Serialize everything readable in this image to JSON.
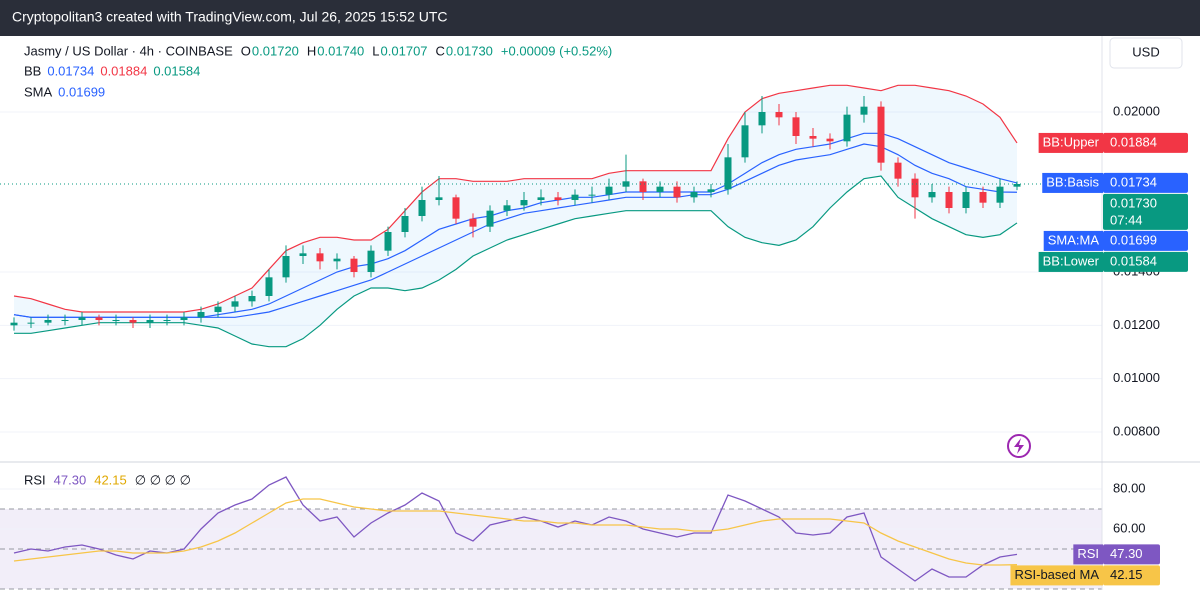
{
  "header": {
    "title": "Cryptopolitan3 created with TradingView.com, Jul 26, 2025 15:52 UTC",
    "currency": "USD"
  },
  "chart_data": [
    {
      "type": "candlestick",
      "legend": {
        "symbol": "Jasmy / US Dollar · 4h · COINBASE",
        "fields": [
          {
            "key": "O",
            "text": "0.01720"
          },
          {
            "key": "H",
            "text": "0.01740"
          },
          {
            "key": "L",
            "text": "0.01707"
          },
          {
            "key": "C",
            "text": "0.01730"
          }
        ],
        "change": "+0.00009 (+0.52%)",
        "bb": "BB",
        "sma": "SMA"
      },
      "open": [
        0.012,
        0.0121,
        0.0121,
        0.0122,
        0.0122,
        0.0123,
        0.0122,
        0.0122,
        0.0121,
        0.0122,
        0.0122,
        0.0123,
        0.0125,
        0.0127,
        0.0129,
        0.0131,
        0.0138,
        0.0146,
        0.0147,
        0.0144,
        0.0145,
        0.014,
        0.0148,
        0.0155,
        0.0161,
        0.0167,
        0.0168,
        0.016,
        0.0157,
        0.0163,
        0.0165,
        0.0167,
        0.0168,
        0.0167,
        0.0169,
        0.0169,
        0.0172,
        0.0174,
        0.017,
        0.0172,
        0.0168,
        0.017,
        0.0171,
        0.0183,
        0.0195,
        0.02,
        0.0198,
        0.0191,
        0.019,
        0.0189,
        0.0199,
        0.0202,
        0.0181,
        0.0175,
        0.0168,
        0.017,
        0.0164,
        0.017,
        0.0166,
        0.0172
      ],
      "high": [
        0.0123,
        0.0123,
        0.0124,
        0.0124,
        0.0125,
        0.0124,
        0.0124,
        0.0123,
        0.0124,
        0.0124,
        0.0125,
        0.0127,
        0.0129,
        0.0131,
        0.0133,
        0.0141,
        0.015,
        0.015,
        0.0149,
        0.0147,
        0.0146,
        0.015,
        0.0157,
        0.0164,
        0.0172,
        0.0176,
        0.0169,
        0.0162,
        0.0165,
        0.0167,
        0.017,
        0.0171,
        0.017,
        0.0171,
        0.0172,
        0.0175,
        0.0184,
        0.0175,
        0.0174,
        0.0174,
        0.0172,
        0.0173,
        0.0188,
        0.02,
        0.0206,
        0.0203,
        0.02,
        0.0194,
        0.0192,
        0.0202,
        0.0206,
        0.0204,
        0.0183,
        0.0177,
        0.0173,
        0.0172,
        0.0172,
        0.0172,
        0.0175,
        0.0174
      ],
      "low": [
        0.0118,
        0.0119,
        0.012,
        0.012,
        0.012,
        0.012,
        0.012,
        0.0119,
        0.0119,
        0.012,
        0.012,
        0.0121,
        0.0123,
        0.0125,
        0.0127,
        0.0129,
        0.0136,
        0.0143,
        0.0141,
        0.0141,
        0.0138,
        0.0138,
        0.0146,
        0.0153,
        0.0159,
        0.0165,
        0.0158,
        0.0153,
        0.0155,
        0.0161,
        0.0163,
        0.0165,
        0.0165,
        0.0165,
        0.0166,
        0.0167,
        0.017,
        0.0167,
        0.0168,
        0.0166,
        0.0166,
        0.0168,
        0.0169,
        0.0181,
        0.0192,
        0.0195,
        0.0188,
        0.0187,
        0.0186,
        0.0187,
        0.0196,
        0.0178,
        0.0172,
        0.016,
        0.0166,
        0.0162,
        0.0162,
        0.0164,
        0.0164,
        0.01707
      ],
      "close": [
        0.0121,
        0.0121,
        0.0122,
        0.0122,
        0.0123,
        0.0122,
        0.0122,
        0.0121,
        0.0122,
        0.0122,
        0.0123,
        0.0125,
        0.0127,
        0.0129,
        0.0131,
        0.0138,
        0.0146,
        0.0147,
        0.0144,
        0.0145,
        0.014,
        0.0148,
        0.0155,
        0.0161,
        0.0167,
        0.0168,
        0.016,
        0.0157,
        0.0163,
        0.0165,
        0.0167,
        0.0168,
        0.0167,
        0.0169,
        0.0169,
        0.0172,
        0.0174,
        0.017,
        0.0172,
        0.0168,
        0.017,
        0.0171,
        0.0183,
        0.0195,
        0.02,
        0.0198,
        0.0191,
        0.019,
        0.0189,
        0.0199,
        0.0202,
        0.0181,
        0.0175,
        0.0168,
        0.017,
        0.0164,
        0.017,
        0.0166,
        0.0172,
        0.0173
      ],
      "up_color": "#089981",
      "down_color": "#f23645",
      "series": [
        {
          "name": "BB:Upper",
          "color": "#f23645",
          "values": [
            0.0131,
            0.013,
            0.0128,
            0.0126,
            0.0125,
            0.0125,
            0.0125,
            0.0125,
            0.0125,
            0.0125,
            0.0125,
            0.0126,
            0.0128,
            0.0131,
            0.0134,
            0.0141,
            0.0148,
            0.0151,
            0.0153,
            0.0153,
            0.0152,
            0.0152,
            0.0156,
            0.0163,
            0.017,
            0.0175,
            0.0175,
            0.0174,
            0.0174,
            0.0174,
            0.0175,
            0.0175,
            0.0175,
            0.0175,
            0.0175,
            0.0177,
            0.0178,
            0.0178,
            0.0178,
            0.0178,
            0.0178,
            0.0178,
            0.019,
            0.02,
            0.0205,
            0.0207,
            0.0208,
            0.0209,
            0.021,
            0.021,
            0.0209,
            0.0208,
            0.021,
            0.021,
            0.0209,
            0.0208,
            0.0206,
            0.0203,
            0.0198,
            0.01884
          ]
        },
        {
          "name": "BB:Basis",
          "color": "#2962ff",
          "values": [
            0.0124,
            0.0123,
            0.0123,
            0.0123,
            0.0123,
            0.0123,
            0.0123,
            0.0123,
            0.0123,
            0.0123,
            0.0123,
            0.0123,
            0.0124,
            0.0125,
            0.0126,
            0.0128,
            0.0131,
            0.0134,
            0.0137,
            0.014,
            0.0142,
            0.0143,
            0.0145,
            0.0148,
            0.0152,
            0.0156,
            0.0158,
            0.016,
            0.0161,
            0.0163,
            0.0164,
            0.0166,
            0.0167,
            0.0168,
            0.0168,
            0.0169,
            0.017,
            0.017,
            0.017,
            0.017,
            0.017,
            0.017,
            0.0173,
            0.0177,
            0.0181,
            0.0184,
            0.0186,
            0.0187,
            0.0188,
            0.019,
            0.0192,
            0.0192,
            0.019,
            0.0187,
            0.0184,
            0.0181,
            0.0179,
            0.0177,
            0.0175,
            0.01734
          ]
        },
        {
          "name": "BB:Lower",
          "color": "#089981",
          "values": [
            0.0117,
            0.0117,
            0.0118,
            0.0119,
            0.012,
            0.0121,
            0.0121,
            0.0121,
            0.0121,
            0.0121,
            0.0121,
            0.012,
            0.0119,
            0.0116,
            0.0113,
            0.0112,
            0.0112,
            0.0115,
            0.012,
            0.0126,
            0.0131,
            0.0134,
            0.0134,
            0.0133,
            0.0134,
            0.0137,
            0.0141,
            0.0146,
            0.0149,
            0.0152,
            0.0154,
            0.0156,
            0.0158,
            0.016,
            0.0161,
            0.0162,
            0.0163,
            0.0163,
            0.0163,
            0.0163,
            0.0163,
            0.0163,
            0.0157,
            0.0153,
            0.0151,
            0.015,
            0.0152,
            0.0157,
            0.0164,
            0.017,
            0.0175,
            0.0176,
            0.0168,
            0.0164,
            0.016,
            0.0157,
            0.0154,
            0.0153,
            0.0154,
            0.01584
          ]
        },
        {
          "name": "SMA:MA",
          "color": "#2962ff",
          "values": [
            0.0124,
            0.0123,
            0.0123,
            0.0123,
            0.0123,
            0.0123,
            0.0123,
            0.0123,
            0.0123,
            0.0123,
            0.0123,
            0.0123,
            0.0123,
            0.0123,
            0.0124,
            0.0125,
            0.0127,
            0.0129,
            0.0131,
            0.0133,
            0.0135,
            0.0137,
            0.014,
            0.0143,
            0.0146,
            0.0149,
            0.0152,
            0.0155,
            0.0158,
            0.016,
            0.0162,
            0.0163,
            0.0164,
            0.0165,
            0.0166,
            0.0167,
            0.0168,
            0.0168,
            0.0168,
            0.0168,
            0.0169,
            0.0169,
            0.0171,
            0.0174,
            0.0177,
            0.018,
            0.0182,
            0.0183,
            0.0184,
            0.0186,
            0.0188,
            0.0187,
            0.0184,
            0.018,
            0.0177,
            0.0175,
            0.0172,
            0.0171,
            0.017,
            0.01699
          ]
        }
      ],
      "price_labels": [
        {
          "name": "BB:Upper",
          "value": 0.01884,
          "label": "0.01884",
          "color": "#f23645"
        },
        {
          "name": "BB:Basis",
          "value": 0.01734,
          "label": "0.01734",
          "color": "#2962ff"
        },
        {
          "name": "SMA:MA",
          "value": 0.01699,
          "label": "0.01699",
          "color": "#2962ff"
        },
        {
          "name": "BB:Lower",
          "value": 0.01584,
          "label": "0.01584",
          "color": "#089981"
        }
      ],
      "last_price": {
        "value": 0.0173,
        "label": "0.01730",
        "countdown": "07:44",
        "color": "#089981"
      },
      "ylim": [
        0.006875,
        0.0227
      ],
      "yticks": [
        {
          "value": 0.008,
          "label": "0.00800"
        },
        {
          "value": 0.01,
          "label": "0.01000"
        },
        {
          "value": 0.012,
          "label": "0.01200"
        },
        {
          "value": 0.014,
          "label": "0.01400"
        },
        {
          "value": 0.02,
          "label": "0.02000"
        }
      ],
      "grid": true
    },
    {
      "type": "line",
      "title": "RSI",
      "empty_values": "∅ ∅ ∅ ∅",
      "series": [
        {
          "name": "RSI",
          "color": "#7e57c2",
          "values": [
            48,
            50,
            49,
            51,
            52,
            50,
            47,
            45,
            49,
            48,
            50,
            60,
            68,
            72,
            75,
            82,
            86,
            72,
            64,
            66,
            56,
            63,
            68,
            72,
            78,
            74,
            58,
            54,
            62,
            64,
            66,
            64,
            61,
            64,
            62,
            66,
            64,
            60,
            58,
            56,
            58,
            58,
            77,
            74,
            70,
            66,
            58,
            57,
            58,
            66,
            68,
            46,
            40,
            34,
            40,
            36,
            36,
            42,
            46,
            47.3
          ]
        },
        {
          "name": "RSI-based MA",
          "color": "#f7c548",
          "values": [
            44,
            45,
            46,
            47,
            48,
            49,
            49,
            48,
            48,
            48,
            49,
            51,
            54,
            58,
            63,
            68,
            73,
            75,
            75,
            73,
            71,
            70,
            69,
            69,
            69,
            69,
            68,
            67,
            66,
            65,
            64,
            64,
            63,
            63,
            62,
            62,
            62,
            61,
            60,
            60,
            59,
            59,
            60,
            62,
            64,
            65,
            65,
            65,
            65,
            64,
            63,
            58,
            54,
            51,
            48,
            45,
            43,
            42,
            42,
            42.15
          ]
        }
      ],
      "price_labels": [
        {
          "name": "RSI",
          "value": 47.3,
          "label": "47.30",
          "color": "#7e57c2"
        },
        {
          "name": "RSI-based MA",
          "value": 42.15,
          "label": "42.15",
          "color": "#f7c548"
        }
      ],
      "levels": [
        70,
        50,
        30
      ],
      "ylim": [
        29.5,
        93.5
      ],
      "yticks": [
        {
          "value": 80,
          "label": "80.00"
        },
        {
          "value": 60,
          "label": "60.00"
        }
      ],
      "grid": true
    }
  ]
}
